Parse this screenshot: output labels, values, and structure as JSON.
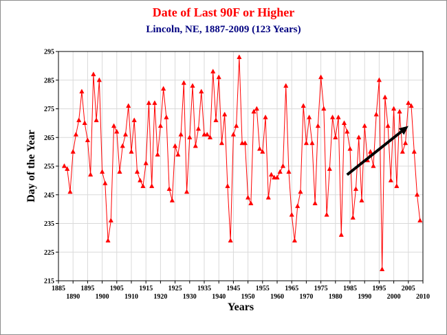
{
  "chart_data": {
    "type": "line",
    "title": "Date of Last 90F or Higher",
    "subtitle": "Lincoln, NE, 1887-2009 (123 Years)",
    "xlabel": "Years",
    "ylabel": "Day of the Year",
    "xlim": [
      1885,
      2010
    ],
    "ylim": [
      215,
      295
    ],
    "x_ticks": [
      1885,
      1890,
      1895,
      1900,
      1905,
      1910,
      1915,
      1920,
      1925,
      1930,
      1935,
      1940,
      1945,
      1950,
      1955,
      1960,
      1965,
      1970,
      1975,
      1980,
      1985,
      1990,
      1995,
      2000,
      2005,
      2010
    ],
    "y_ticks": [
      215,
      225,
      235,
      245,
      255,
      265,
      275,
      285,
      295
    ],
    "grid": true,
    "colors": {
      "title": "#ff0000",
      "subtitle": "#000080",
      "series": "#ff0000",
      "grid": "#d9d9d9",
      "arrow": "#000000"
    },
    "series": [
      {
        "x": [
          1887,
          1888,
          1889,
          1890,
          1891,
          1892,
          1893,
          1894,
          1895,
          1896,
          1897,
          1898,
          1899,
          1900,
          1901,
          1902,
          1903,
          1904,
          1905,
          1906,
          1907,
          1908,
          1909,
          1910,
          1911,
          1912,
          1913,
          1914,
          1915,
          1916,
          1917,
          1918,
          1919,
          1920,
          1921,
          1922,
          1923,
          1924,
          1925,
          1926,
          1927,
          1928,
          1929,
          1930,
          1931,
          1932,
          1933,
          1934,
          1935,
          1936,
          1937,
          1938,
          1939,
          1940,
          1941,
          1942,
          1943,
          1944,
          1945,
          1946,
          1947,
          1948,
          1949,
          1950,
          1951,
          1952,
          1953,
          1954,
          1955,
          1956,
          1957,
          1958,
          1959,
          1960,
          1961,
          1962,
          1963,
          1964,
          1965,
          1966,
          1967,
          1968,
          1969,
          1970,
          1971,
          1972,
          1973,
          1974,
          1975,
          1976,
          1977,
          1978,
          1979,
          1980,
          1981,
          1982,
          1983,
          1984,
          1985,
          1986,
          1987,
          1988,
          1989,
          1990,
          1991,
          1992,
          1993,
          1994,
          1995,
          1996,
          1997,
          1998,
          1999,
          2000,
          2001,
          2002,
          2003,
          2004,
          2005,
          2006,
          2007,
          2008,
          2009
        ],
        "values": [
          255,
          254,
          246,
          260,
          266,
          271,
          281,
          270,
          264,
          252,
          287,
          271,
          285,
          253,
          249,
          229,
          236,
          269,
          267,
          253,
          262,
          266,
          276,
          260,
          271,
          253,
          250,
          248,
          256,
          277,
          248,
          277,
          259,
          269,
          282,
          272,
          247,
          243,
          262,
          259,
          266,
          284,
          246,
          265,
          283,
          262,
          268,
          281,
          266,
          266,
          265,
          288,
          271,
          286,
          263,
          273,
          248,
          229,
          266,
          269,
          293,
          263,
          263,
          244,
          242,
          274,
          275,
          261,
          260,
          272,
          244,
          252,
          251,
          251,
          253,
          255,
          283,
          253,
          238,
          229,
          241,
          246,
          276,
          263,
          272,
          263,
          242,
          269,
          286,
          275,
          238,
          254,
          272,
          265,
          272,
          231,
          270,
          267,
          261,
          237,
          247,
          265,
          243,
          269,
          257,
          260,
          255,
          273,
          285,
          219,
          279,
          269,
          250,
          275,
          248,
          274,
          260,
          263,
          277,
          276,
          260,
          245,
          236
        ]
      }
    ],
    "annotations": [
      {
        "type": "arrow",
        "from": [
          1984,
          252
        ],
        "to": [
          2005,
          269
        ]
      }
    ]
  }
}
